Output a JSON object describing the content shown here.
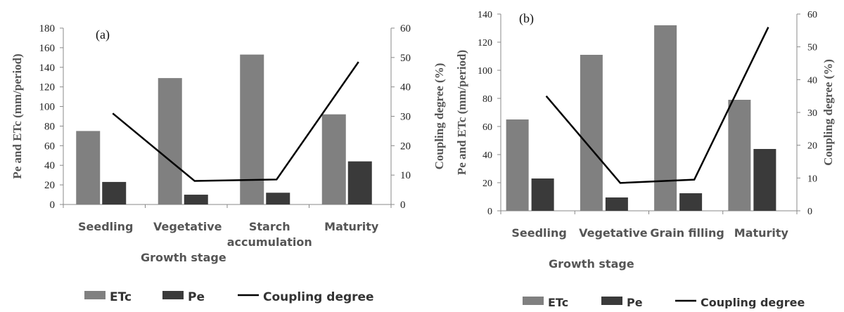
{
  "chart_data": [
    {
      "panel_label": "(a)",
      "type": "bar",
      "categories": [
        "Seedling",
        "Vegetative",
        "Starch accumulation",
        "Maturity"
      ],
      "category_labels": [
        [
          "Seedling"
        ],
        [
          "Vegetative"
        ],
        [
          "Starch",
          "accumulation"
        ],
        [
          "Maturity"
        ]
      ],
      "series": [
        {
          "name": "ETc",
          "type": "bar",
          "axis": "left",
          "color": "#808080",
          "values": [
            75,
            129,
            153,
            92
          ]
        },
        {
          "name": "Pe",
          "type": "bar",
          "axis": "left",
          "color": "#3a3a3a",
          "values": [
            23,
            10,
            12,
            44
          ]
        },
        {
          "name": "Coupling degree",
          "type": "line",
          "axis": "right",
          "color": "#000000",
          "values": [
            31,
            8,
            8.5,
            48.5
          ]
        }
      ],
      "xlabel": "Growth stage",
      "ylabel": "Pe and ETc (mm/period)",
      "y2label": "Coupling degree (%)",
      "ylim": [
        0,
        180
      ],
      "yticks": [
        0,
        20,
        40,
        60,
        80,
        100,
        120,
        140,
        160,
        180
      ],
      "y2lim": [
        0,
        60
      ],
      "y2ticks": [
        0,
        10,
        20,
        30,
        40,
        50,
        60
      ],
      "grid": false,
      "legend": {
        "position": "bottom",
        "labels": [
          "ETc",
          "Pe",
          "Coupling degree"
        ]
      }
    },
    {
      "panel_label": "(b)",
      "type": "bar",
      "categories": [
        "Seedling",
        "Vegetative",
        "Grain filling",
        "Maturity"
      ],
      "category_labels": [
        [
          "Seedling"
        ],
        [
          "Vegetative"
        ],
        [
          "Grain filling"
        ],
        [
          "Maturity"
        ]
      ],
      "series": [
        {
          "name": "ETc",
          "type": "bar",
          "axis": "left",
          "color": "#808080",
          "values": [
            65,
            111,
            132,
            79
          ]
        },
        {
          "name": "Pe",
          "type": "bar",
          "axis": "left",
          "color": "#3a3a3a",
          "values": [
            23,
            9.5,
            12.5,
            44
          ]
        },
        {
          "name": "Coupling degree",
          "type": "line",
          "axis": "right",
          "color": "#000000",
          "values": [
            35,
            8.5,
            9.5,
            56
          ]
        }
      ],
      "xlabel": "Growth stage",
      "ylabel": "Pe and ETc (mm/period)",
      "y2label": "Coupling degree (%)",
      "ylim": [
        0,
        140
      ],
      "yticks": [
        0,
        20,
        40,
        60,
        80,
        100,
        120,
        140
      ],
      "y2lim": [
        0,
        60
      ],
      "y2ticks": [
        0,
        10,
        20,
        30,
        40,
        50,
        60
      ],
      "grid": false,
      "legend": {
        "position": "bottom",
        "labels": [
          "ETc",
          "Pe",
          "Coupling degree"
        ]
      }
    }
  ]
}
